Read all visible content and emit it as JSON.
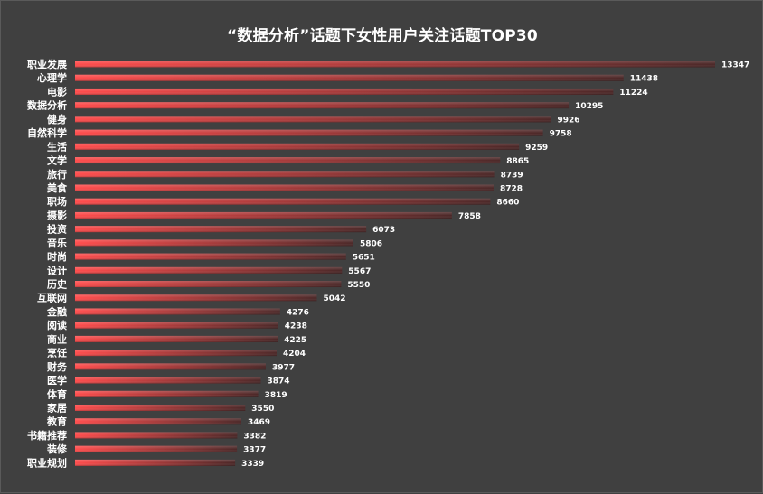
{
  "colors": {
    "background": "#404040",
    "bar_start": "#ff4b4b",
    "bar_end": "#4a2626",
    "text": "#ffffff"
  },
  "chart_data": {
    "type": "bar",
    "orientation": "horizontal",
    "title": "“数据分析”话题下女性用户关注话题TOP30",
    "xlabel": "",
    "ylabel": "",
    "xlim": [
      0,
      13347
    ],
    "grid": false,
    "legend": "none",
    "categories": [
      "职业发展",
      "心理学",
      "电影",
      "数据分析",
      "健身",
      "自然科学",
      "生活",
      "文学",
      "旅行",
      "美食",
      "职场",
      "摄影",
      "投资",
      "音乐",
      "时尚",
      "设计",
      "历史",
      "互联网",
      "金融",
      "阅读",
      "商业",
      "烹饪",
      "财务",
      "医学",
      "体育",
      "家居",
      "教育",
      "书籍推荐",
      "装修",
      "职业规划"
    ],
    "values": [
      13347,
      11438,
      11224,
      10295,
      9926,
      9758,
      9259,
      8865,
      8739,
      8728,
      8660,
      7858,
      6073,
      5806,
      5651,
      5567,
      5550,
      5042,
      4276,
      4238,
      4225,
      4204,
      3977,
      3874,
      3819,
      3550,
      3469,
      3382,
      3377,
      3339
    ]
  }
}
